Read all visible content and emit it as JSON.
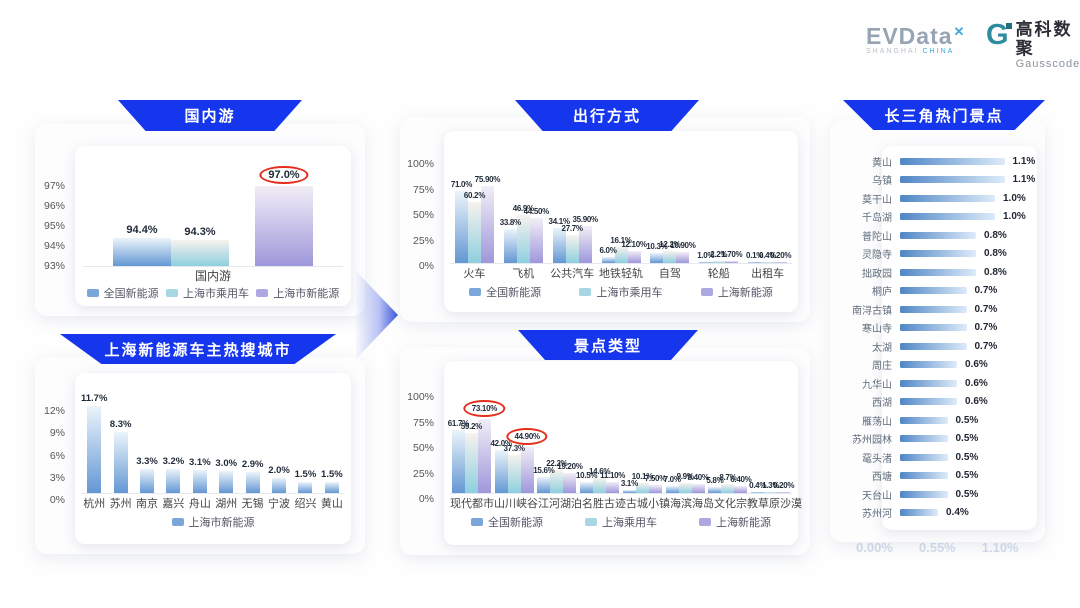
{
  "brand": {
    "evdata_text": "EVData",
    "evdata_sup": "✕",
    "evdata_sub_left": "SHANGHAI",
    "evdata_sub_right": "CHINA",
    "gauss_icon_letter": "G",
    "gauss_cn": "高科数聚",
    "gauss_en": "Gausscode"
  },
  "colors": {
    "banner_blue": "#1636ee",
    "series_national_blue": "#7ba6da",
    "series_passenger_cyan": "#a8d7e3",
    "series_nev_purple": "#aea8e2",
    "hbar_blue": "#4f86c6",
    "highlight_circle_red": "#e62e1b"
  },
  "chart_data": [
    {
      "type": "bar",
      "title": "国内游",
      "xlabel": "国内游",
      "ylim": [
        93,
        97.9
      ],
      "grid": false,
      "legend_position": "bottom",
      "yticks": [
        {
          "label": "93%",
          "v": 93
        },
        {
          "label": "94%",
          "v": 94
        },
        {
          "label": "95%",
          "v": 95
        },
        {
          "label": "96%",
          "v": 96
        },
        {
          "label": "97%",
          "v": 97
        }
      ],
      "categories": [
        "国内游"
      ],
      "series": [
        {
          "name": "全国新能源",
          "values": [
            94.4
          ],
          "labels": [
            "94.4%"
          ]
        },
        {
          "name": "上海市乘用车",
          "values": [
            94.3
          ],
          "labels": [
            "94.3%"
          ]
        },
        {
          "name": "上海市新能源",
          "values": [
            97.0
          ],
          "labels": [
            "97.0%"
          ],
          "circled": [
            0
          ]
        }
      ]
    },
    {
      "type": "bar",
      "title": "上海新能源车主热搜城市",
      "ylim": [
        0,
        13.5
      ],
      "grid": false,
      "legend_position": "bottom",
      "yticks": [
        {
          "label": "0%",
          "v": 0
        },
        {
          "label": "3%",
          "v": 3
        },
        {
          "label": "6%",
          "v": 6
        },
        {
          "label": "9%",
          "v": 9
        },
        {
          "label": "12%",
          "v": 12
        }
      ],
      "categories": [
        "杭州",
        "苏州",
        "南京",
        "嘉兴",
        "舟山",
        "湖州",
        "无锡",
        "宁波",
        "绍兴",
        "黄山"
      ],
      "series": [
        {
          "name": "上海市新能源",
          "values": [
            11.7,
            8.3,
            3.3,
            3.2,
            3.1,
            3.0,
            2.9,
            2.0,
            1.5,
            1.5
          ],
          "labels": [
            "11.7%",
            "8.3%",
            "3.3%",
            "3.2%",
            "3.1%",
            "3.0%",
            "2.9%",
            "2.0%",
            "1.5%",
            "1.5%"
          ]
        }
      ]
    },
    {
      "type": "bar",
      "title": "出行方式",
      "ylim": [
        0,
        106
      ],
      "grid": false,
      "legend_position": "bottom",
      "yticks": [
        {
          "label": "0%",
          "v": 0
        },
        {
          "label": "25%",
          "v": 25
        },
        {
          "label": "50%",
          "v": 50
        },
        {
          "label": "75%",
          "v": 75
        },
        {
          "label": "100%",
          "v": 100
        }
      ],
      "categories": [
        "火车",
        "飞机",
        "公共汽车",
        "地铁轻轨",
        "自驾",
        "轮船",
        "出租车"
      ],
      "series": [
        {
          "name": "全国新能源",
          "values": [
            71.0,
            33.8,
            34.1,
            6.0,
            10.3,
            1.0,
            0.1
          ],
          "labels": [
            "71.0%",
            "33.8%",
            "34.1%",
            "6.0%",
            "10.3%",
            "1.0%",
            "0.1%"
          ]
        },
        {
          "name": "上海市乘用车",
          "values": [
            60.2,
            46.9,
            27.7,
            16.1,
            12.2,
            2.2,
            0.4
          ],
          "labels": [
            "60.2%",
            "46.9%",
            "27.7%",
            "16.1%",
            "12.2%",
            "2.2%",
            "0.4%"
          ]
        },
        {
          "name": "上海新能源",
          "values": [
            75.9,
            44.5,
            35.9,
            12.1,
            10.9,
            1.7,
            0.2
          ],
          "labels": [
            "75.90%",
            "44.50%",
            "35.90%",
            "12.10%",
            "10.90%",
            "1.70%",
            "0.20%"
          ]
        }
      ]
    },
    {
      "type": "bar",
      "title": "景点类型",
      "ylim": [
        0,
        106
      ],
      "grid": false,
      "legend_position": "bottom",
      "yticks": [
        {
          "label": "0%",
          "v": 0
        },
        {
          "label": "25%",
          "v": 25
        },
        {
          "label": "50%",
          "v": 50
        },
        {
          "label": "75%",
          "v": 75
        },
        {
          "label": "100%",
          "v": 100
        }
      ],
      "categories": [
        "现代都市",
        "山川峡谷",
        "江河湖泊",
        "名胜古迹",
        "古城小镇",
        "海滨海岛",
        "文化宗教",
        "草原沙漠"
      ],
      "series": [
        {
          "name": "全国新能源",
          "values": [
            61.7,
            42.0,
            15.6,
            10.5,
            3.1,
            7.0,
            5.8,
            0.4
          ],
          "labels": [
            "61.7%",
            "42.0%",
            "15.6%",
            "10.5%",
            "3.1%",
            "7.0%",
            "5.8%",
            "0.4%"
          ]
        },
        {
          "name": "上海乘用车",
          "values": [
            59.2,
            37.3,
            22.2,
            14.6,
            10.1,
            9.9,
            8.7,
            1.3
          ],
          "labels": [
            "59.2%",
            "37.3%",
            "22.2%",
            "14.6%",
            "10.1%",
            "9.9%",
            "8.7%",
            "1.3%"
          ]
        },
        {
          "name": "上海新能源",
          "values": [
            73.1,
            44.9,
            19.2,
            11.1,
            7.5,
            8.4,
            6.4,
            0.2
          ],
          "labels": [
            "73.10%",
            "44.90%",
            "19.20%",
            "11.10%",
            "7.50%",
            "8.40%",
            "6.40%",
            "0.20%"
          ],
          "circled": [
            0,
            1
          ]
        }
      ]
    },
    {
      "type": "bar",
      "orientation": "horizontal",
      "title": "长三角热门景点",
      "xlim": [
        0,
        1.1
      ],
      "axis_footer": [
        "0.00%",
        "0.55%",
        "1.10%"
      ],
      "items": [
        {
          "name": "黄山",
          "value": 1.1,
          "label": "1.1%"
        },
        {
          "name": "乌镇",
          "value": 1.1,
          "label": "1.1%"
        },
        {
          "name": "莫干山",
          "value": 1.0,
          "label": "1.0%"
        },
        {
          "name": "千岛湖",
          "value": 1.0,
          "label": "1.0%"
        },
        {
          "name": "普陀山",
          "value": 0.8,
          "label": "0.8%"
        },
        {
          "name": "灵隐寺",
          "value": 0.8,
          "label": "0.8%"
        },
        {
          "name": "拙政园",
          "value": 0.8,
          "label": "0.8%"
        },
        {
          "name": "桐庐",
          "value": 0.7,
          "label": "0.7%"
        },
        {
          "name": "南浔古镇",
          "value": 0.7,
          "label": "0.7%"
        },
        {
          "name": "寒山寺",
          "value": 0.7,
          "label": "0.7%"
        },
        {
          "name": "太湖",
          "value": 0.7,
          "label": "0.7%"
        },
        {
          "name": "周庄",
          "value": 0.6,
          "label": "0.6%"
        },
        {
          "name": "九华山",
          "value": 0.6,
          "label": "0.6%"
        },
        {
          "name": "西湖",
          "value": 0.6,
          "label": "0.6%"
        },
        {
          "name": "雁荡山",
          "value": 0.5,
          "label": "0.5%"
        },
        {
          "name": "苏州园林",
          "value": 0.5,
          "label": "0.5%"
        },
        {
          "name": "鼋头渚",
          "value": 0.5,
          "label": "0.5%"
        },
        {
          "name": "西塘",
          "value": 0.5,
          "label": "0.5%"
        },
        {
          "name": "天台山",
          "value": 0.5,
          "label": "0.5%"
        },
        {
          "name": "苏州河",
          "value": 0.4,
          "label": "0.4%"
        }
      ]
    }
  ]
}
